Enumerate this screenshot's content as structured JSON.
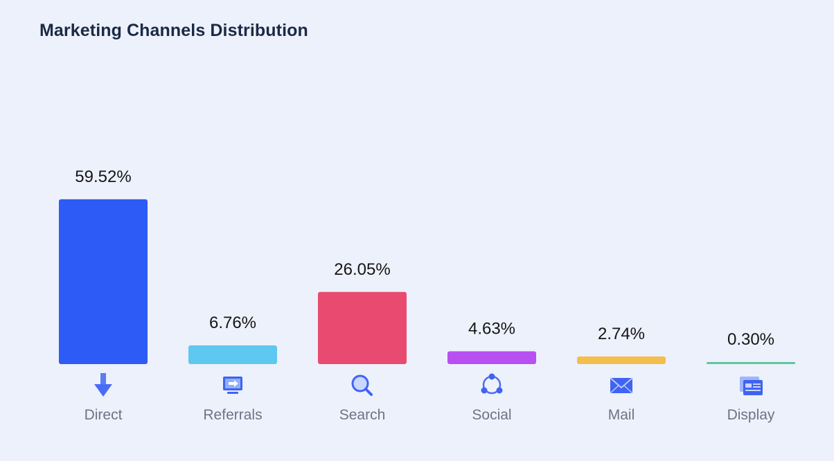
{
  "title": "Marketing Channels Distribution",
  "chart_data": {
    "type": "bar",
    "title": "Marketing Channels Distribution",
    "categories": [
      "Direct",
      "Referrals",
      "Search",
      "Social",
      "Mail",
      "Display"
    ],
    "values": [
      59.52,
      6.76,
      26.05,
      4.63,
      2.74,
      0.3
    ],
    "value_labels": [
      "59.52%",
      "6.76%",
      "26.05%",
      "4.63%",
      "2.74%",
      "0.30%"
    ],
    "colors": [
      "#2d5bf6",
      "#5ec8f0",
      "#e84b6f",
      "#b84ff0",
      "#f4be4c",
      "#5cc89a"
    ],
    "icons": [
      "down-arrow-icon",
      "monitor-icon",
      "magnifier-icon",
      "share-network-icon",
      "envelope-icon",
      "browser-window-icon"
    ],
    "xlabel": "",
    "ylabel": "",
    "grid": false,
    "legend": "none"
  }
}
